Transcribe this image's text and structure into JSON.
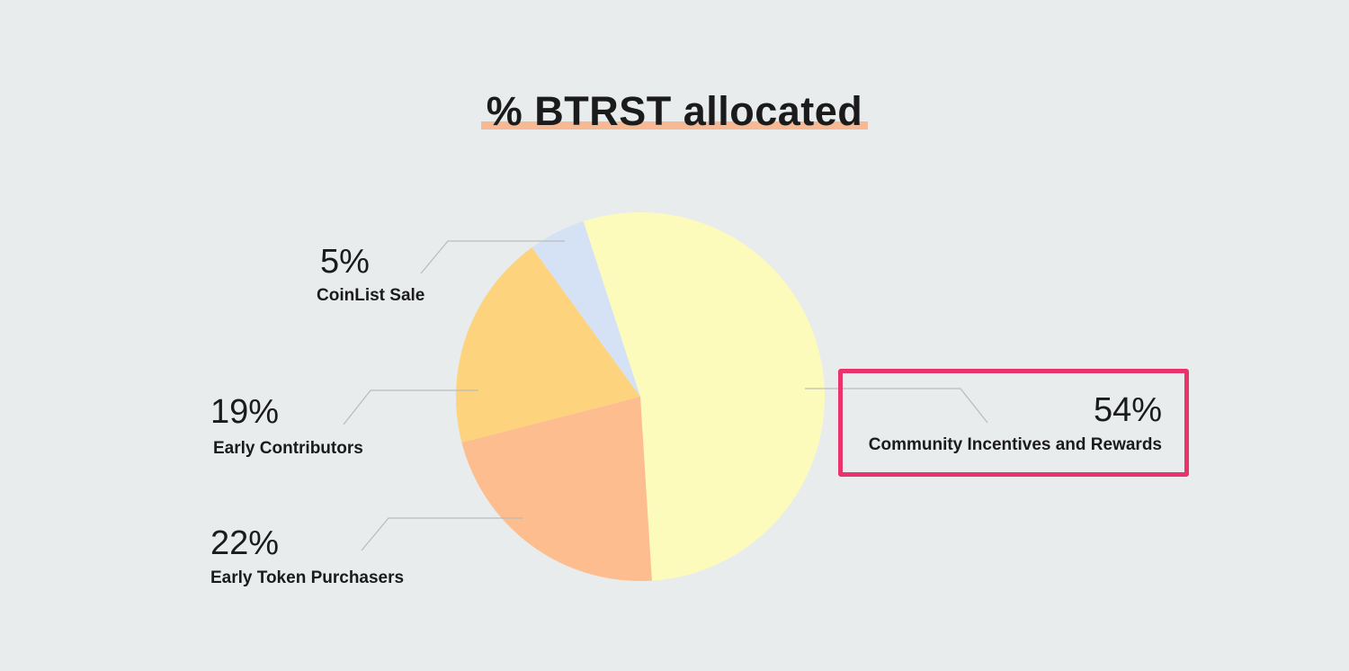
{
  "title": "% BTRST allocated",
  "colors": {
    "title_highlight": "#f7b894",
    "callout_box": "#e8336c",
    "leader_line": "#bcbcbc",
    "background": "#e8ecec"
  },
  "chart_data": {
    "type": "pie",
    "title": "% BTRST allocated",
    "slices": [
      {
        "label": "Community Incentives and Rewards",
        "value": 54,
        "display": "54%",
        "color": "#fdfbbc",
        "highlighted": true
      },
      {
        "label": "Early Token Purchasers",
        "value": 22,
        "display": "22%",
        "color": "#fdbd8f"
      },
      {
        "label": "Early Contributors",
        "value": 19,
        "display": "19%",
        "color": "#fed37e"
      },
      {
        "label": "CoinList Sale",
        "value": 5,
        "display": "5%",
        "color": "#d5e2f5"
      }
    ],
    "start_angle_deg": -18,
    "direction": "clockwise"
  }
}
